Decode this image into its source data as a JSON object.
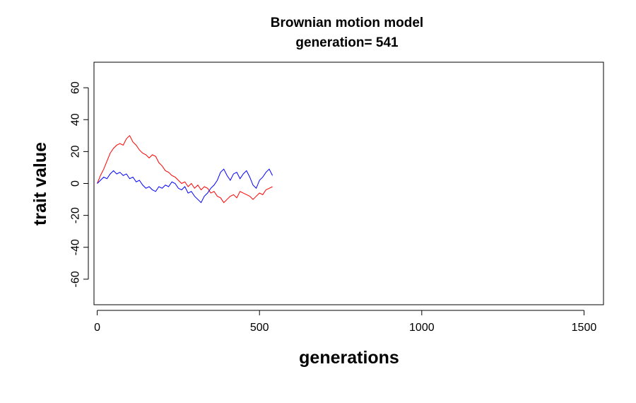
{
  "chart_data": {
    "type": "line",
    "title": "Brownian motion model",
    "subtitle": "generation= 541",
    "xlabel": "generations",
    "ylabel": "trait value",
    "xlim": [
      -10,
      1560
    ],
    "ylim": [
      -76,
      76
    ],
    "x_ticks": [
      0,
      500,
      1000,
      1500
    ],
    "x_tick_labels": [
      "0",
      "500",
      "1000",
      "1500"
    ],
    "y_ticks": [
      -60,
      -40,
      -20,
      0,
      20,
      40,
      60
    ],
    "y_tick_labels": [
      "-60",
      "-40",
      "-20",
      "0",
      "20",
      "40",
      "60"
    ],
    "grid": false,
    "legend": "none",
    "series": [
      {
        "color": "#ff0000",
        "x": [
          0,
          10,
          20,
          30,
          40,
          50,
          60,
          70,
          80,
          90,
          100,
          110,
          120,
          130,
          140,
          150,
          160,
          170,
          180,
          190,
          200,
          210,
          220,
          230,
          240,
          250,
          260,
          270,
          280,
          290,
          300,
          310,
          320,
          330,
          340,
          350,
          360,
          370,
          380,
          390,
          400,
          410,
          420,
          430,
          440,
          450,
          460,
          470,
          480,
          490,
          500,
          510,
          520,
          530,
          540
        ],
        "y": [
          0,
          5,
          9,
          14,
          19,
          22,
          24,
          25,
          24,
          28,
          30,
          26,
          24,
          21,
          19,
          18,
          16,
          18,
          17,
          13,
          11,
          8,
          7,
          5,
          4,
          2,
          0,
          1,
          -2,
          0,
          -3,
          -1,
          -4,
          -2,
          -3,
          -6,
          -5,
          -8,
          -9,
          -12,
          -10,
          -8,
          -7,
          -9,
          -5,
          -6,
          -7,
          -8,
          -10,
          -8,
          -6,
          -7,
          -4,
          -3,
          -2
        ]
      },
      {
        "color": "#0000ff",
        "x": [
          0,
          10,
          20,
          30,
          40,
          50,
          60,
          70,
          80,
          90,
          100,
          110,
          120,
          130,
          140,
          150,
          160,
          170,
          180,
          190,
          200,
          210,
          220,
          230,
          240,
          250,
          260,
          270,
          280,
          290,
          300,
          310,
          320,
          330,
          340,
          350,
          360,
          370,
          380,
          390,
          400,
          410,
          420,
          430,
          440,
          450,
          460,
          470,
          480,
          490,
          500,
          510,
          520,
          530,
          540
        ],
        "y": [
          0,
          2,
          4,
          3,
          6,
          8,
          6,
          7,
          5,
          6,
          3,
          4,
          1,
          2,
          -1,
          -3,
          -2,
          -4,
          -5,
          -2,
          -3,
          -1,
          -2,
          1,
          0,
          -3,
          -4,
          -2,
          -6,
          -5,
          -8,
          -10,
          -12,
          -8,
          -6,
          -3,
          -1,
          2,
          7,
          9,
          5,
          2,
          6,
          7,
          3,
          6,
          8,
          4,
          -1,
          -3,
          2,
          4,
          7,
          9,
          5
        ]
      }
    ]
  }
}
